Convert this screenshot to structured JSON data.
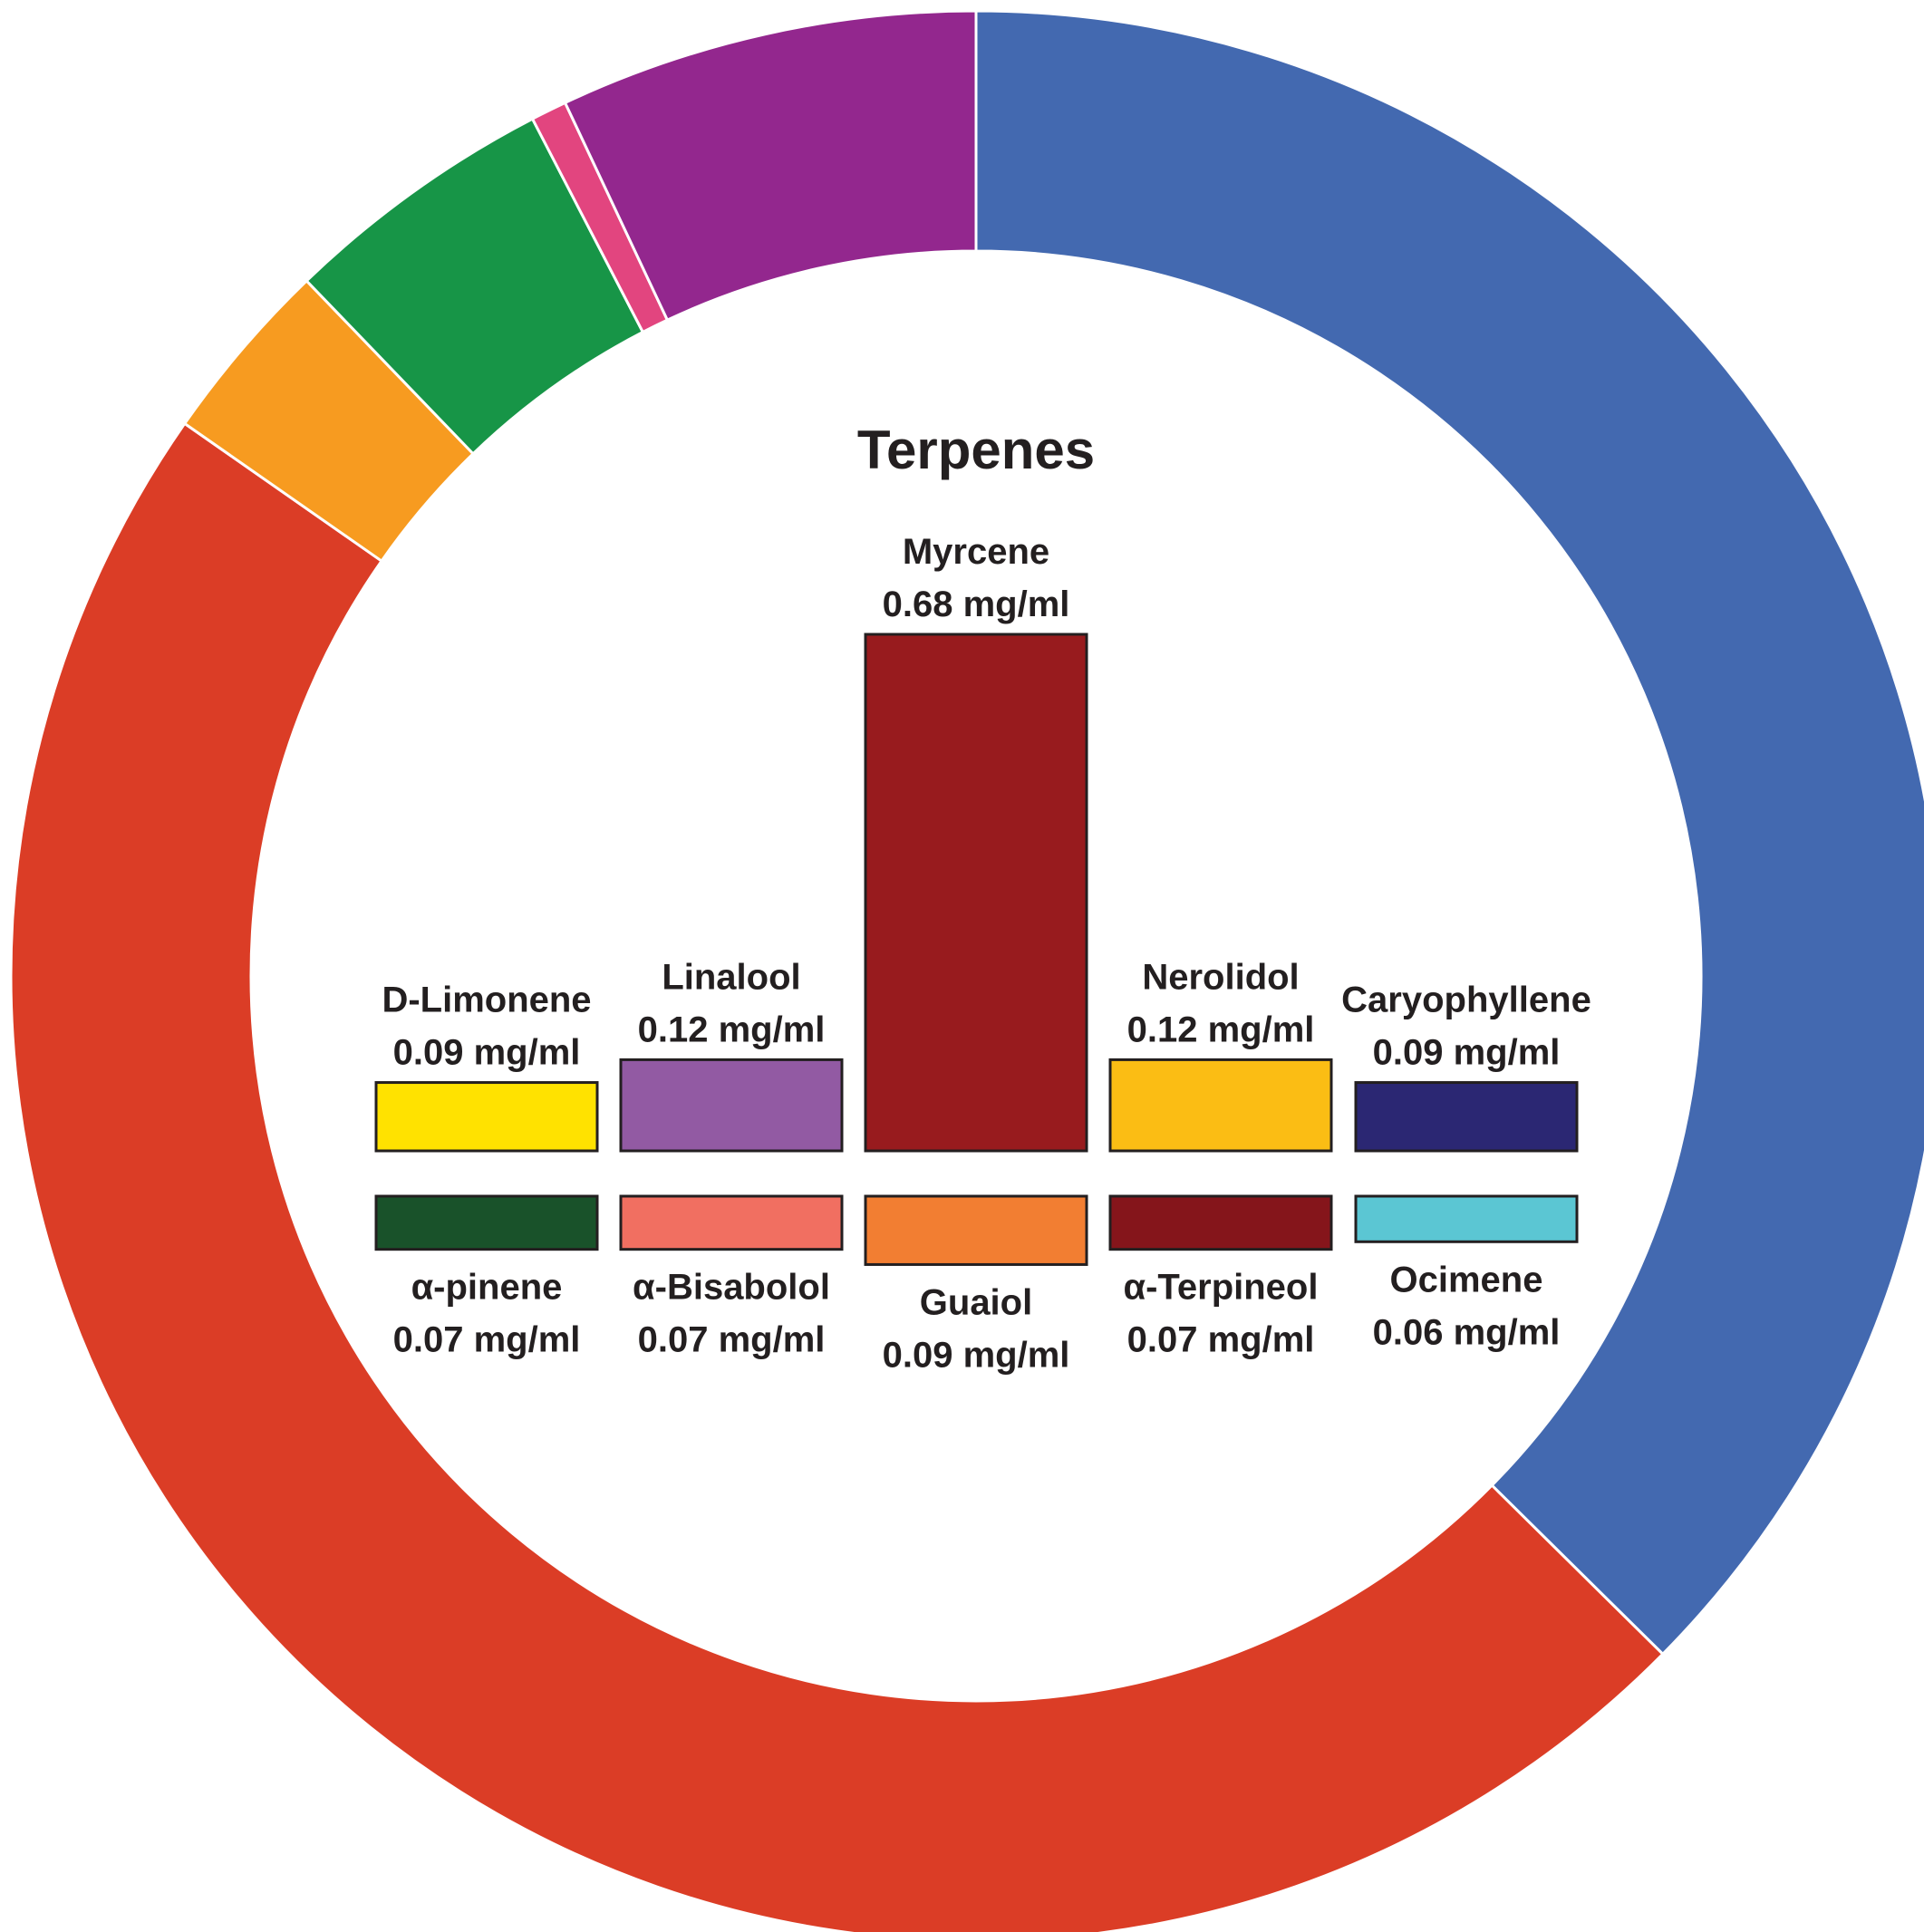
{
  "chart_data": [
    {
      "type": "pie",
      "style": "donut",
      "title": "",
      "slices": [
        {
          "value": 37.4,
          "color": "#4369b0"
        },
        {
          "value": 47.3,
          "color": "#db3d26"
        },
        {
          "value": 3.1,
          "color": "#f79b20"
        },
        {
          "value": 4.6,
          "color": "#179547"
        },
        {
          "value": 0.6,
          "color": "#e2457f"
        },
        {
          "value": 7.0,
          "color": "#93278e"
        }
      ]
    },
    {
      "type": "bar",
      "title": "Terpenes",
      "unit": "mg/ml",
      "top_row": [
        {
          "name": "D-Limonene",
          "label": "0.09 mg/ml",
          "value": 0.09,
          "color": "#ffe200"
        },
        {
          "name": "Linalool",
          "label": "0.12 mg/ml",
          "value": 0.12,
          "color": "#925aa3"
        },
        {
          "name": "Myrcene",
          "label": "0.68 mg/ml",
          "value": 0.68,
          "color": "#981b1e"
        },
        {
          "name": "Nerolidol",
          "label": "0.12 mg/ml",
          "value": 0.12,
          "color": "#fbbd14"
        },
        {
          "name": "Caryophyllene",
          "label": "0.09 mg/ml",
          "value": 0.09,
          "color": "#2b2773"
        }
      ],
      "bottom_row": [
        {
          "name": "α-pinene",
          "label": "0.07 mg/ml",
          "value": 0.07,
          "color": "#19522a"
        },
        {
          "name": "α-Bisabolol",
          "label": "0.07 mg/ml",
          "value": 0.07,
          "color": "#f16f61"
        },
        {
          "name": "Guaiol",
          "label": "0.09 mg/ml",
          "value": 0.09,
          "color": "#f27e32"
        },
        {
          "name": "α-Terpineol",
          "label": "0.07 mg/ml",
          "value": 0.07,
          "color": "#85151b"
        },
        {
          "name": "Ocimene",
          "label": "0.06 mg/ml",
          "value": 0.06,
          "color": "#5bc6d3"
        }
      ]
    }
  ]
}
